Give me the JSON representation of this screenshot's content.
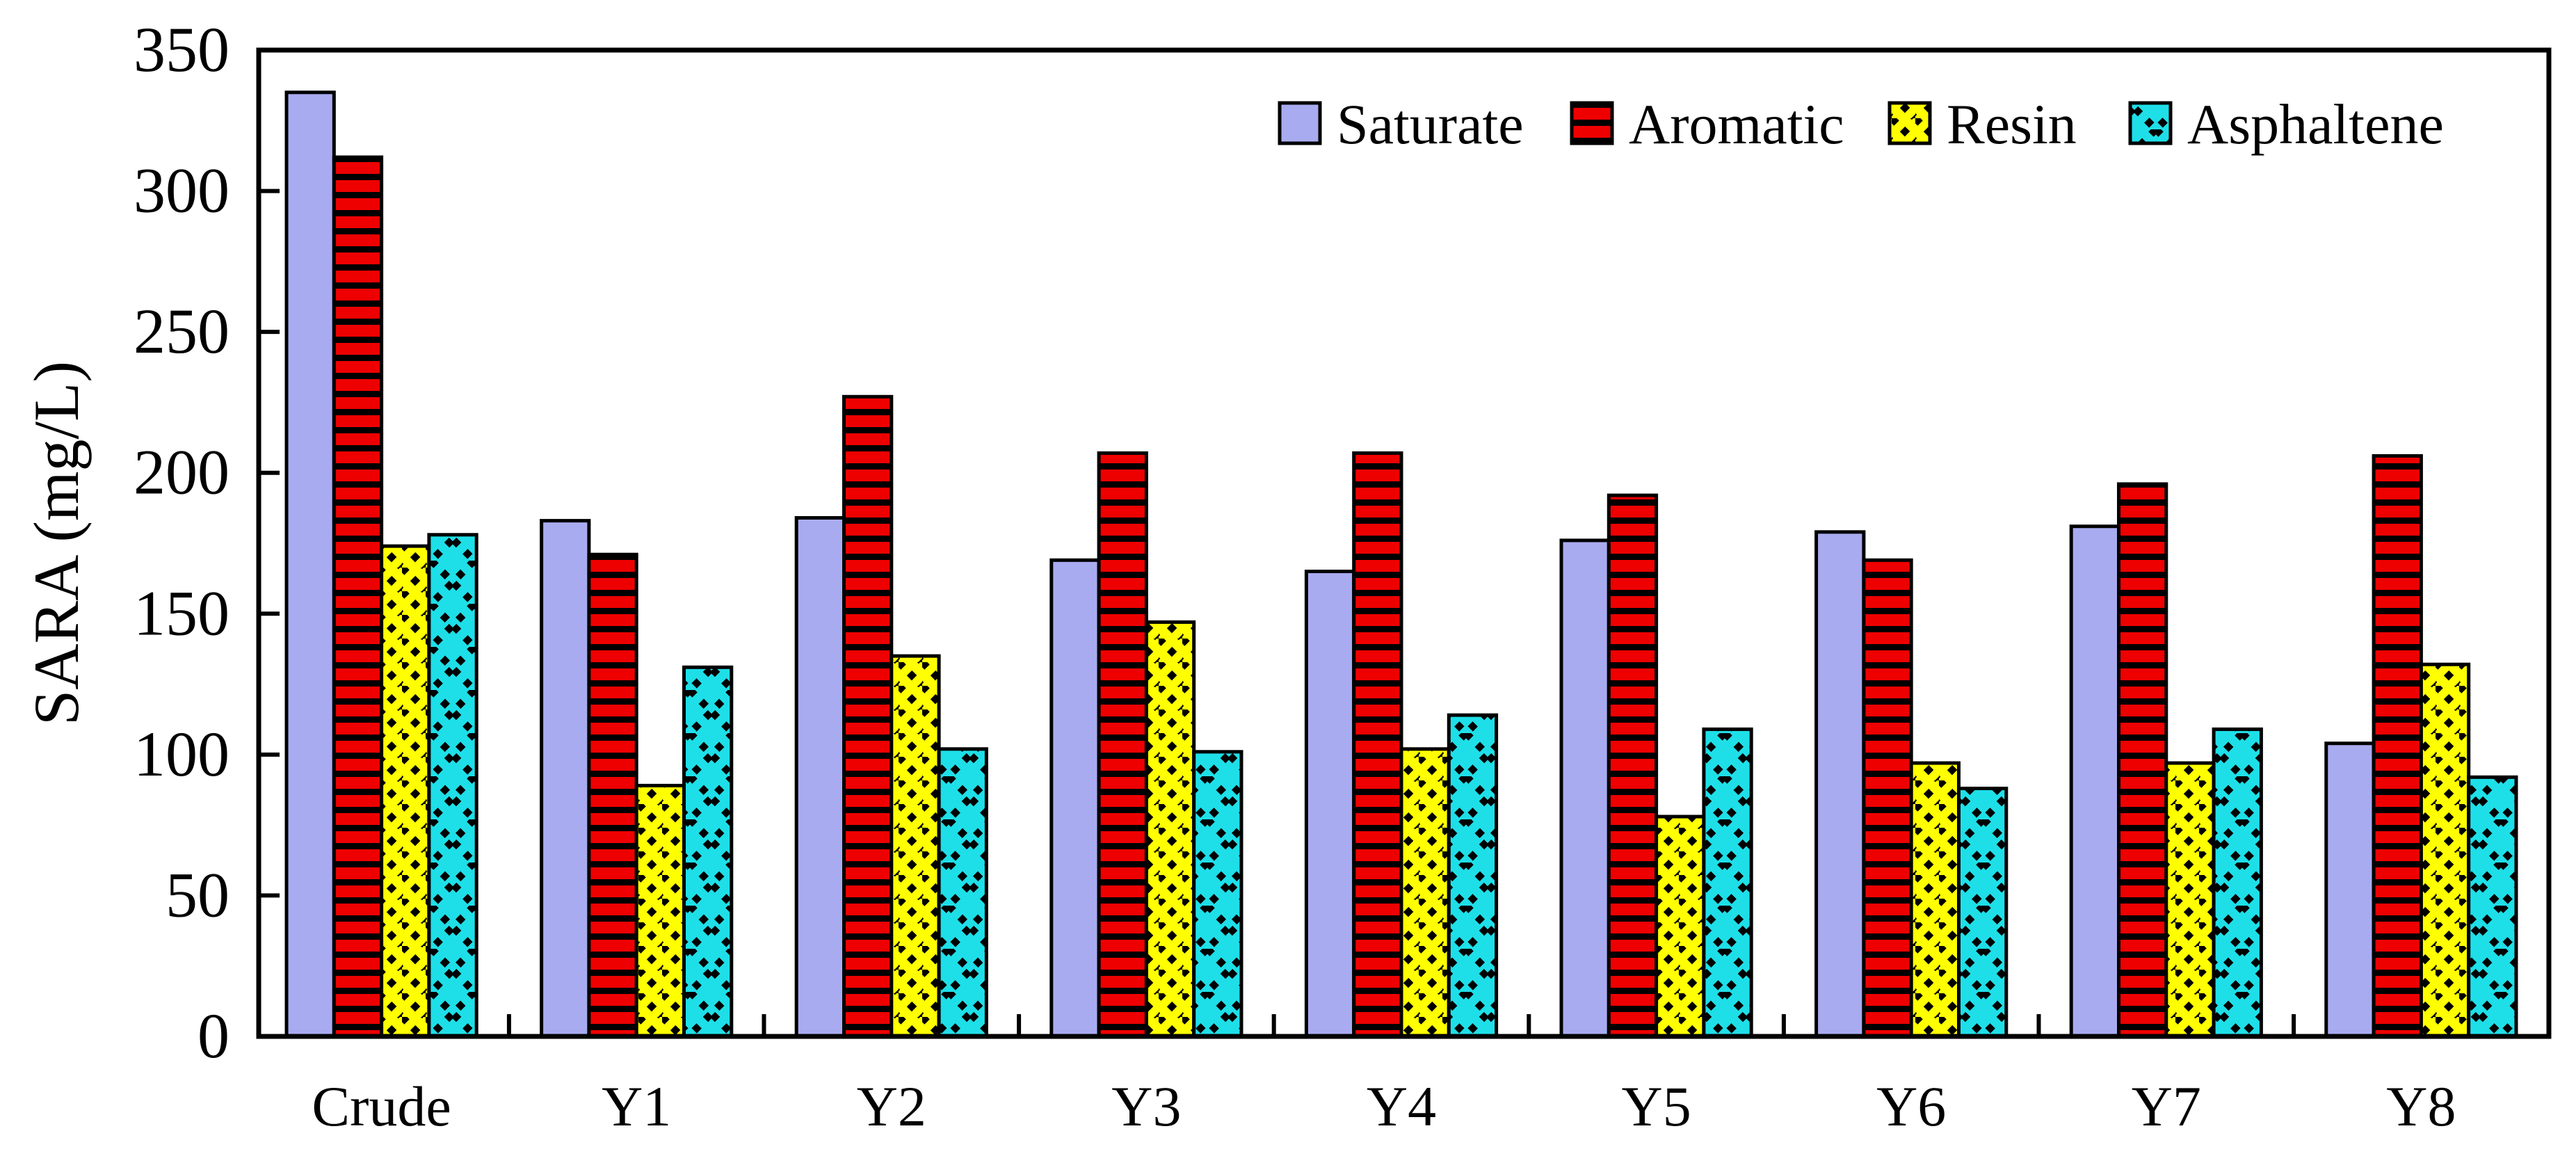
{
  "figure": {
    "background": "#ffffff"
  },
  "chart_data": {
    "type": "bar",
    "title": "",
    "xlabel": "",
    "ylabel": "SARA (mg/L)",
    "ylim": [
      0,
      350
    ],
    "yticks": [
      0,
      50,
      100,
      150,
      200,
      250,
      300,
      350
    ],
    "categories": [
      "Crude",
      "Y1",
      "Y2",
      "Y3",
      "Y4",
      "Y5",
      "Y6",
      "Y7",
      "Y8"
    ],
    "series": [
      {
        "name": "Saturate",
        "color": "#a9abf0",
        "pattern": "solid",
        "values": [
          335,
          183,
          184,
          169,
          165,
          176,
          179,
          181,
          104
        ]
      },
      {
        "name": "Aromatic",
        "color": "#ee0000",
        "pattern": "horizontal-stripes",
        "values": [
          312,
          171,
          227,
          207,
          207,
          192,
          169,
          196,
          206
        ]
      },
      {
        "name": "Resin",
        "color": "#ffff00",
        "pattern": "diagonal-dotted",
        "values": [
          174,
          89,
          135,
          147,
          102,
          78,
          97,
          97,
          132
        ]
      },
      {
        "name": "Asphaltene",
        "color": "#1edfe8",
        "pattern": "crosshatch-dotted",
        "values": [
          178,
          131,
          102,
          101,
          114,
          109,
          88,
          109,
          92
        ]
      }
    ],
    "legend": {
      "position": "top-right",
      "labels": [
        "Saturate",
        "Aromatic",
        "Resin",
        "Asphaltene"
      ]
    },
    "axis_color": "#000000",
    "text_color": "#000000",
    "grid": false
  }
}
